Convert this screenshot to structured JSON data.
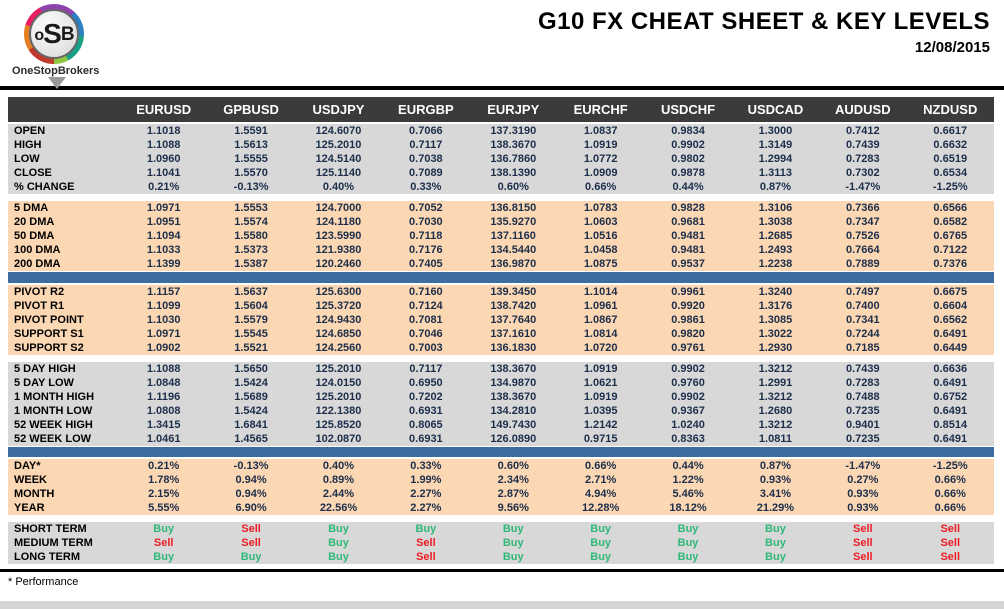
{
  "page": {
    "title": "G10 FX CHEAT SHEET & KEY LEVELS",
    "date": "12/08/2015",
    "footnote": "* Performance",
    "logo": {
      "o": "o",
      "s": "S",
      "b": "B",
      "name": "OneStopBrokers"
    }
  },
  "table": {
    "columns": [
      "EURUSD",
      "GPBUSD",
      "USDJPY",
      "EURGBP",
      "EURJPY",
      "EURCHF",
      "USDCHF",
      "USDCAD",
      "AUDUSD",
      "NZDUSD"
    ],
    "sections": [
      {
        "name": "ohlc",
        "bg": "grey",
        "after": "gap",
        "rows": [
          {
            "label": "OPEN",
            "values": [
              "1.1018",
              "1.5591",
              "124.6070",
              "0.7066",
              "137.3190",
              "1.0837",
              "0.9834",
              "1.3000",
              "0.7412",
              "0.6617"
            ]
          },
          {
            "label": "HIGH",
            "values": [
              "1.1088",
              "1.5613",
              "125.2010",
              "0.7117",
              "138.3670",
              "1.0919",
              "0.9902",
              "1.3149",
              "0.7439",
              "0.6632"
            ]
          },
          {
            "label": "LOW",
            "values": [
              "1.0960",
              "1.5555",
              "124.5140",
              "0.7038",
              "136.7860",
              "1.0772",
              "0.9802",
              "1.2994",
              "0.7283",
              "0.6519"
            ]
          },
          {
            "label": "CLOSE",
            "values": [
              "1.1041",
              "1.5570",
              "125.1140",
              "0.7089",
              "138.1390",
              "1.0909",
              "0.9878",
              "1.3113",
              "0.7302",
              "0.6534"
            ]
          },
          {
            "label": "% CHANGE",
            "values": [
              "0.21%",
              "-0.13%",
              "0.40%",
              "0.33%",
              "0.60%",
              "0.66%",
              "0.44%",
              "0.87%",
              "-1.47%",
              "-1.25%"
            ]
          }
        ]
      },
      {
        "name": "dma",
        "bg": "peach",
        "after": "blue",
        "rows": [
          {
            "label": "5 DMA",
            "values": [
              "1.0971",
              "1.5553",
              "124.7000",
              "0.7052",
              "136.8150",
              "1.0783",
              "0.9828",
              "1.3106",
              "0.7366",
              "0.6566"
            ]
          },
          {
            "label": "20 DMA",
            "values": [
              "1.0951",
              "1.5574",
              "124.1180",
              "0.7030",
              "135.9270",
              "1.0603",
              "0.9681",
              "1.3038",
              "0.7347",
              "0.6582"
            ]
          },
          {
            "label": "50 DMA",
            "values": [
              "1.1094",
              "1.5580",
              "123.5990",
              "0.7118",
              "137.1160",
              "1.0516",
              "0.9481",
              "1.2685",
              "0.7526",
              "0.6765"
            ]
          },
          {
            "label": "100 DMA",
            "values": [
              "1.1033",
              "1.5373",
              "121.9380",
              "0.7176",
              "134.5440",
              "1.0458",
              "0.9481",
              "1.2493",
              "0.7664",
              "0.7122"
            ]
          },
          {
            "label": "200 DMA",
            "values": [
              "1.1399",
              "1.5387",
              "120.2460",
              "0.7405",
              "136.9870",
              "1.0875",
              "0.9537",
              "1.2238",
              "0.7889",
              "0.7376"
            ]
          }
        ]
      },
      {
        "name": "pivots",
        "bg": "peach",
        "after": "gap",
        "rows": [
          {
            "label": "PIVOT R2",
            "color": "green",
            "values": [
              "1.1157",
              "1.5637",
              "125.6300",
              "0.7160",
              "139.3450",
              "1.1014",
              "0.9961",
              "1.3240",
              "0.7497",
              "0.6675"
            ]
          },
          {
            "label": "PIVOT R1",
            "color": "green",
            "values": [
              "1.1099",
              "1.5604",
              "125.3720",
              "0.7124",
              "138.7420",
              "1.0961",
              "0.9920",
              "1.3176",
              "0.7400",
              "0.6604"
            ]
          },
          {
            "label": "PIVOT POINT",
            "color": "navy",
            "values": [
              "1.1030",
              "1.5579",
              "124.9430",
              "0.7081",
              "137.7640",
              "1.0867",
              "0.9861",
              "1.3085",
              "0.7341",
              "0.6562"
            ]
          },
          {
            "label": "SUPPORT S1",
            "color": "red",
            "values": [
              "1.0971",
              "1.5545",
              "124.6850",
              "0.7046",
              "137.1610",
              "1.0814",
              "0.9820",
              "1.3022",
              "0.7244",
              "0.6491"
            ]
          },
          {
            "label": "SUPPORT S2",
            "color": "red",
            "values": [
              "1.0902",
              "1.5521",
              "124.2560",
              "0.7003",
              "136.1830",
              "1.0720",
              "0.9761",
              "1.2930",
              "0.7185",
              "0.6449"
            ]
          }
        ]
      },
      {
        "name": "ranges",
        "bg": "grey",
        "after": "blue",
        "rows": [
          {
            "label": "5 DAY HIGH",
            "values": [
              "1.1088",
              "1.5650",
              "125.2010",
              "0.7117",
              "138.3670",
              "1.0919",
              "0.9902",
              "1.3212",
              "0.7439",
              "0.6636"
            ]
          },
          {
            "label": "5 DAY LOW",
            "values": [
              "1.0848",
              "1.5424",
              "124.0150",
              "0.6950",
              "134.9870",
              "1.0621",
              "0.9760",
              "1.2991",
              "0.7283",
              "0.6491"
            ]
          },
          {
            "label": "1 MONTH HIGH",
            "values": [
              "1.1196",
              "1.5689",
              "125.2010",
              "0.7202",
              "138.3670",
              "1.0919",
              "0.9902",
              "1.3212",
              "0.7488",
              "0.6752"
            ]
          },
          {
            "label": "1 MONTH LOW",
            "values": [
              "1.0808",
              "1.5424",
              "122.1380",
              "0.6931",
              "134.2810",
              "1.0395",
              "0.9367",
              "1.2680",
              "0.7235",
              "0.6491"
            ]
          },
          {
            "label": "52 WEEK HIGH",
            "values": [
              "1.3415",
              "1.6841",
              "125.8520",
              "0.8065",
              "149.7430",
              "1.2142",
              "1.0240",
              "1.3212",
              "0.9401",
              "0.8514"
            ]
          },
          {
            "label": "52 WEEK LOW",
            "values": [
              "1.0461",
              "1.4565",
              "102.0870",
              "0.6931",
              "126.0890",
              "0.9715",
              "0.8363",
              "1.0811",
              "0.7235",
              "0.6491"
            ]
          }
        ]
      },
      {
        "name": "performance",
        "bg": "peach",
        "after": "gap",
        "rows": [
          {
            "label": "DAY*",
            "values": [
              "0.21%",
              "-0.13%",
              "0.40%",
              "0.33%",
              "0.60%",
              "0.66%",
              "0.44%",
              "0.87%",
              "-1.47%",
              "-1.25%"
            ]
          },
          {
            "label": "WEEK",
            "values": [
              "1.78%",
              "0.94%",
              "0.89%",
              "1.99%",
              "2.34%",
              "2.71%",
              "1.22%",
              "0.93%",
              "0.27%",
              "0.66%"
            ]
          },
          {
            "label": "MONTH",
            "values": [
              "2.15%",
              "0.94%",
              "2.44%",
              "2.27%",
              "2.87%",
              "4.94%",
              "5.46%",
              "3.41%",
              "0.93%",
              "0.66%"
            ]
          },
          {
            "label": "YEAR",
            "values": [
              "5.55%",
              "6.90%",
              "22.56%",
              "2.27%",
              "9.56%",
              "12.28%",
              "18.12%",
              "21.29%",
              "0.93%",
              "0.66%"
            ]
          }
        ]
      },
      {
        "name": "signals",
        "bg": "grey",
        "rows": [
          {
            "label": "SHORT TERM",
            "values": [
              "Buy",
              "Sell",
              "Buy",
              "Buy",
              "Buy",
              "Buy",
              "Buy",
              "Buy",
              "Sell",
              "Sell"
            ]
          },
          {
            "label": "MEDIUM TERM",
            "values": [
              "Sell",
              "Sell",
              "Buy",
              "Sell",
              "Buy",
              "Buy",
              "Buy",
              "Buy",
              "Sell",
              "Sell"
            ]
          },
          {
            "label": "LONG TERM",
            "values": [
              "Buy",
              "Buy",
              "Buy",
              "Sell",
              "Buy",
              "Buy",
              "Buy",
              "Buy",
              "Sell",
              "Sell"
            ]
          }
        ]
      }
    ]
  }
}
